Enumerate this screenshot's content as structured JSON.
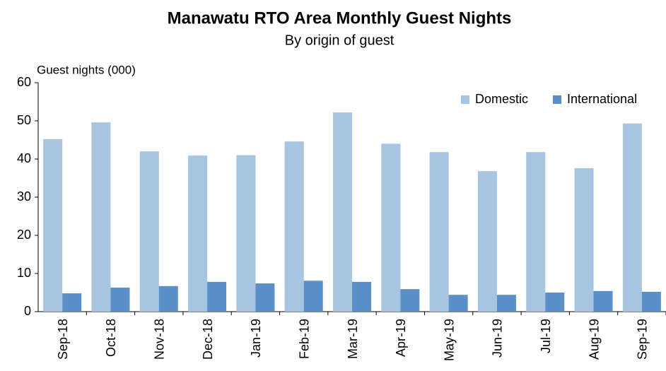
{
  "chart_data": {
    "type": "bar",
    "title": "Manawatu RTO Area Monthly Guest Nights",
    "subtitle": "By origin of guest",
    "y_label": "Guest nights (000)",
    "categories": [
      "Sep-18",
      "Oct-18",
      "Nov-18",
      "Dec-18",
      "Jan-19",
      "Feb-19",
      "Mar-19",
      "Apr-19",
      "May-19",
      "Jun-19",
      "Jul-19",
      "Aug-19",
      "Sep-19"
    ],
    "series": [
      {
        "name": "Domestic",
        "color": "#a7c4e0",
        "values": [
          45.2,
          49.6,
          42,
          40.9,
          41,
          44.6,
          52.2,
          44,
          41.8,
          36.8,
          41.8,
          37.6,
          49.3
        ]
      },
      {
        "name": "International",
        "color": "#5a8fc8",
        "values": [
          4.8,
          6.3,
          6.7,
          7.8,
          7.4,
          8.1,
          7.8,
          5.9,
          4.4,
          4.4,
          5,
          5.4,
          5.2
        ]
      }
    ],
    "ylim": [
      0,
      60
    ],
    "yticks": [
      0,
      10,
      20,
      30,
      40,
      50,
      60
    ],
    "grid": false,
    "legend": "upper right"
  }
}
